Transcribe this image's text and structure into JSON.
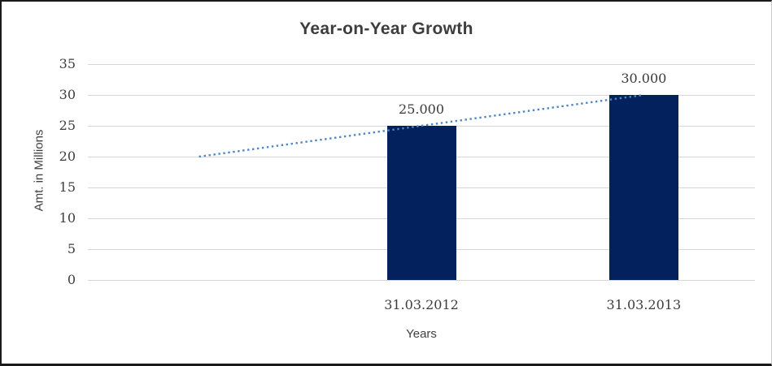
{
  "chart_data": {
    "type": "bar",
    "title": "Year-on-Year Growth",
    "xlabel": "Years",
    "ylabel": "Amt. in Millions",
    "categories": [
      "31.03.2012",
      "31.03.2013"
    ],
    "values": [
      25,
      30
    ],
    "data_labels": [
      "25.000",
      "30.000"
    ],
    "ylim": [
      0,
      35
    ],
    "yticks": [
      0,
      5,
      10,
      15,
      20,
      25,
      30,
      35
    ],
    "grid": true,
    "legend": "none",
    "category_slots": 3,
    "bar_slots": [
      1,
      2
    ],
    "trendline": {
      "style": "dotted",
      "color": "#4e86c6",
      "start_slot": 0,
      "start_value": 20,
      "end_slot": 2,
      "end_value": 30
    },
    "colors": {
      "bar": "#03215c",
      "gridline": "#d6d6d6",
      "text": "#3d3d3d",
      "background": "#ffffff"
    }
  }
}
